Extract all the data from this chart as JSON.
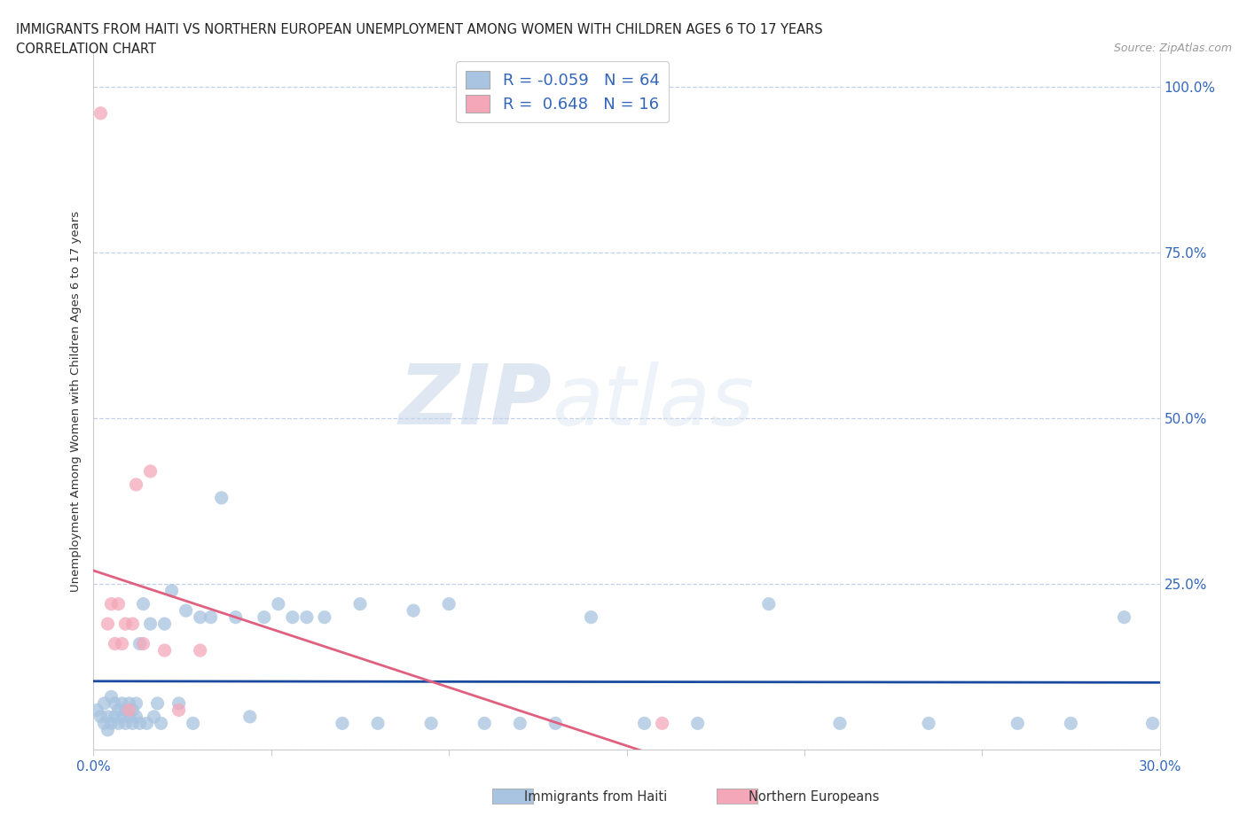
{
  "title_line1": "IMMIGRANTS FROM HAITI VS NORTHERN EUROPEAN UNEMPLOYMENT AMONG WOMEN WITH CHILDREN AGES 6 TO 17 YEARS",
  "title_line2": "CORRELATION CHART",
  "source": "Source: ZipAtlas.com",
  "ylabel": "Unemployment Among Women with Children Ages 6 to 17 years",
  "xlim": [
    0.0,
    0.3
  ],
  "ylim": [
    0.0,
    1.05
  ],
  "xticks": [
    0.0,
    0.05,
    0.1,
    0.15,
    0.2,
    0.25,
    0.3
  ],
  "xticklabels": [
    "0.0%",
    "",
    "",
    "",
    "",
    "",
    "30.0%"
  ],
  "yticks": [
    0.0,
    0.25,
    0.5,
    0.75,
    1.0
  ],
  "yticklabels": [
    "",
    "25.0%",
    "50.0%",
    "75.0%",
    "100.0%"
  ],
  "haiti_color": "#a8c4e0",
  "northern_color": "#f4a7b9",
  "haiti_line_color": "#1a4a9e",
  "northern_line_color": "#e06080",
  "legend_r_haiti": "-0.059",
  "legend_n_haiti": "64",
  "legend_r_northern": "0.648",
  "legend_n_northern": "16",
  "watermark_zip": "ZIP",
  "watermark_atlas": "atlas",
  "haiti_x": [
    0.001,
    0.002,
    0.003,
    0.003,
    0.004,
    0.004,
    0.005,
    0.005,
    0.006,
    0.006,
    0.007,
    0.007,
    0.008,
    0.008,
    0.009,
    0.009,
    0.01,
    0.01,
    0.011,
    0.011,
    0.012,
    0.012,
    0.013,
    0.013,
    0.014,
    0.015,
    0.016,
    0.017,
    0.018,
    0.019,
    0.02,
    0.022,
    0.024,
    0.026,
    0.028,
    0.03,
    0.033,
    0.036,
    0.04,
    0.044,
    0.048,
    0.052,
    0.056,
    0.06,
    0.065,
    0.07,
    0.075,
    0.08,
    0.09,
    0.095,
    0.1,
    0.11,
    0.12,
    0.13,
    0.14,
    0.155,
    0.17,
    0.19,
    0.21,
    0.235,
    0.26,
    0.275,
    0.29,
    0.298
  ],
  "haiti_y": [
    0.06,
    0.05,
    0.04,
    0.07,
    0.03,
    0.05,
    0.04,
    0.08,
    0.05,
    0.07,
    0.04,
    0.06,
    0.05,
    0.07,
    0.04,
    0.06,
    0.05,
    0.07,
    0.04,
    0.06,
    0.05,
    0.07,
    0.16,
    0.04,
    0.22,
    0.04,
    0.19,
    0.05,
    0.07,
    0.04,
    0.19,
    0.24,
    0.07,
    0.21,
    0.04,
    0.2,
    0.2,
    0.38,
    0.2,
    0.05,
    0.2,
    0.22,
    0.2,
    0.2,
    0.2,
    0.04,
    0.22,
    0.04,
    0.21,
    0.04,
    0.22,
    0.04,
    0.04,
    0.04,
    0.2,
    0.04,
    0.04,
    0.22,
    0.04,
    0.04,
    0.04,
    0.04,
    0.2,
    0.04
  ],
  "northern_x": [
    0.002,
    0.004,
    0.005,
    0.006,
    0.007,
    0.008,
    0.009,
    0.01,
    0.011,
    0.012,
    0.014,
    0.016,
    0.02,
    0.024,
    0.03,
    0.16
  ],
  "northern_y": [
    0.96,
    0.19,
    0.22,
    0.16,
    0.22,
    0.16,
    0.19,
    0.06,
    0.19,
    0.4,
    0.16,
    0.42,
    0.15,
    0.06,
    0.15,
    0.04
  ]
}
